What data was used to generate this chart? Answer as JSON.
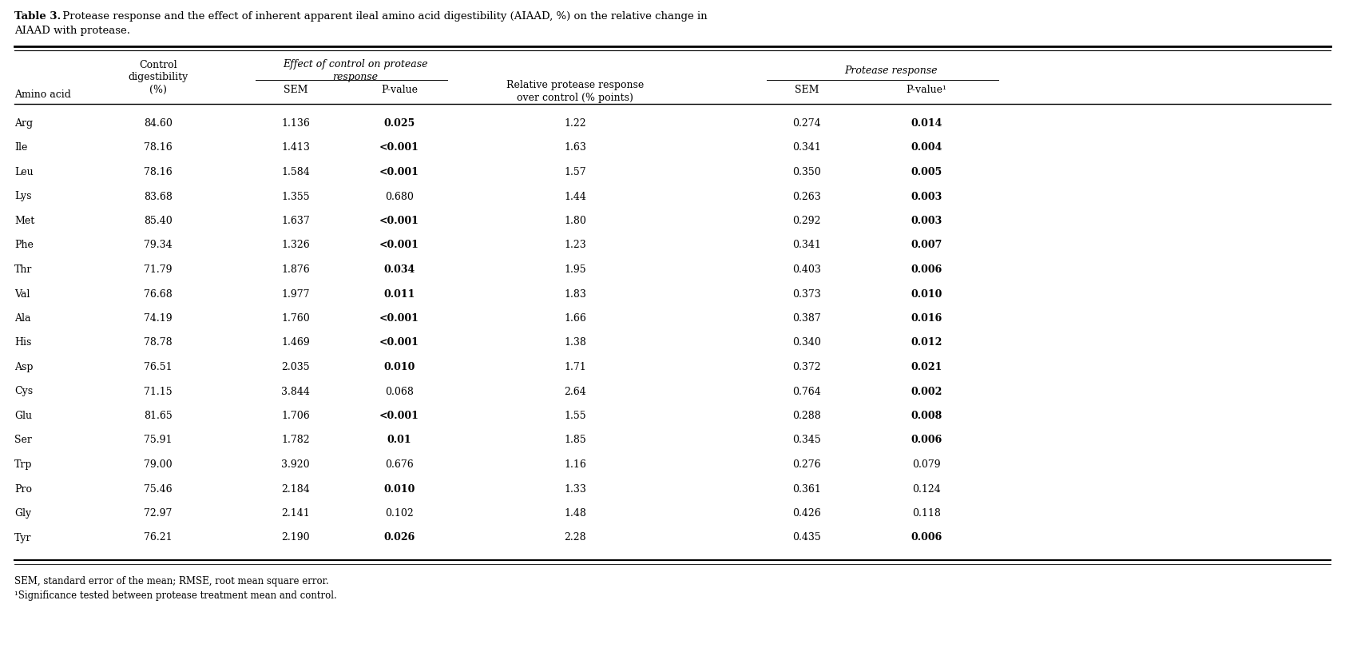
{
  "title_bold": "Table 3.",
  "title_rest": " Protease response and the effect of inherent apparent ileal amino acid digestibility (AIAAD, %) on the relative change in AIAAD with protease.",
  "rows": [
    [
      "Arg",
      "84.60",
      "1.136",
      "0.025",
      "1.22",
      "0.274",
      "0.014"
    ],
    [
      "Ile",
      "78.16",
      "1.413",
      "<0.001",
      "1.63",
      "0.341",
      "0.004"
    ],
    [
      "Leu",
      "78.16",
      "1.584",
      "<0.001",
      "1.57",
      "0.350",
      "0.005"
    ],
    [
      "Lys",
      "83.68",
      "1.355",
      "0.680",
      "1.44",
      "0.263",
      "0.003"
    ],
    [
      "Met",
      "85.40",
      "1.637",
      "<0.001",
      "1.80",
      "0.292",
      "0.003"
    ],
    [
      "Phe",
      "79.34",
      "1.326",
      "<0.001",
      "1.23",
      "0.341",
      "0.007"
    ],
    [
      "Thr",
      "71.79",
      "1.876",
      "0.034",
      "1.95",
      "0.403",
      "0.006"
    ],
    [
      "Val",
      "76.68",
      "1.977",
      "0.011",
      "1.83",
      "0.373",
      "0.010"
    ],
    [
      "Ala",
      "74.19",
      "1.760",
      "<0.001",
      "1.66",
      "0.387",
      "0.016"
    ],
    [
      "His",
      "78.78",
      "1.469",
      "<0.001",
      "1.38",
      "0.340",
      "0.012"
    ],
    [
      "Asp",
      "76.51",
      "2.035",
      "0.010",
      "1.71",
      "0.372",
      "0.021"
    ],
    [
      "Cys",
      "71.15",
      "3.844",
      "0.068",
      "2.64",
      "0.764",
      "0.002"
    ],
    [
      "Glu",
      "81.65",
      "1.706",
      "<0.001",
      "1.55",
      "0.288",
      "0.008"
    ],
    [
      "Ser",
      "75.91",
      "1.782",
      "0.01",
      "1.85",
      "0.345",
      "0.006"
    ],
    [
      "Trp",
      "79.00",
      "3.920",
      "0.676",
      "1.16",
      "0.276",
      "0.079"
    ],
    [
      "Pro",
      "75.46",
      "2.184",
      "0.010",
      "1.33",
      "0.361",
      "0.124"
    ],
    [
      "Gly",
      "72.97",
      "2.141",
      "0.102",
      "1.48",
      "0.426",
      "0.118"
    ],
    [
      "Tyr",
      "76.21",
      "2.190",
      "0.026",
      "2.28",
      "0.435",
      "0.006"
    ]
  ],
  "bold_pvalue_col3": [
    "0.025",
    "<0.001",
    "0.034",
    "0.011",
    "0.010",
    "0.01",
    "0.026"
  ],
  "bold_pvalue_col6": [
    "0.014",
    "0.004",
    "0.005",
    "0.003",
    "0.003",
    "0.007",
    "0.006",
    "0.010",
    "0.016",
    "0.012",
    "0.021",
    "0.002",
    "0.008",
    "0.006",
    "0.006"
  ],
  "footnote1": "SEM, standard error of the mean; RMSE, root mean square error.",
  "footnote2": "¹Significance tested between protease treatment mean and control."
}
